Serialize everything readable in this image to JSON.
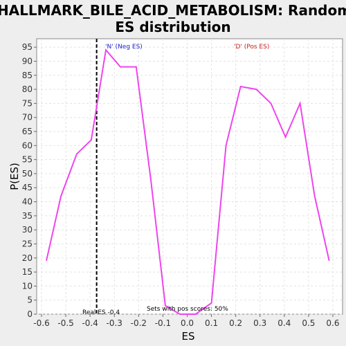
{
  "chart_data": {
    "type": "line",
    "title_line1": "HALLMARK_BILE_ACID_METABOLISM: Random",
    "title_line2": "ES distribution",
    "xlabel": "ES",
    "ylabel": "P(ES)",
    "xlim": [
      -0.62,
      0.64
    ],
    "ylim": [
      0,
      98
    ],
    "xticks": [
      -0.6,
      -0.5,
      -0.4,
      -0.3,
      -0.2,
      -0.1,
      0.0,
      0.1,
      0.2,
      0.3,
      0.4,
      0.5,
      0.6
    ],
    "xtick_labels": [
      "-0.6",
      "-0.5",
      "-0.4",
      "-0.3",
      "-0.2",
      "-0.1",
      "0.0",
      "0.1",
      "0.2",
      "0.3",
      "0.4",
      "0.5",
      "0.6"
    ],
    "yticks": [
      0,
      5,
      10,
      15,
      20,
      25,
      30,
      35,
      40,
      45,
      50,
      55,
      60,
      65,
      70,
      75,
      80,
      85,
      90,
      95
    ],
    "ytick_labels": [
      "0",
      "5",
      "10",
      "15",
      "20",
      "25",
      "30",
      "35",
      "40",
      "45",
      "50",
      "55",
      "60",
      "65",
      "70",
      "75",
      "80",
      "85",
      "90",
      "95"
    ],
    "grid": true,
    "series": [
      {
        "color": "#ee44ee",
        "x": [
          -0.58,
          -0.52,
          -0.455,
          -0.395,
          -0.335,
          -0.275,
          -0.21,
          -0.15,
          -0.09,
          -0.03,
          0.035,
          0.1,
          0.16,
          0.22,
          0.285,
          0.345,
          0.405,
          0.465,
          0.525,
          0.585
        ],
        "y": [
          19,
          42,
          57,
          62,
          94,
          88,
          88,
          48,
          3,
          0,
          0,
          4,
          60,
          81,
          80,
          75,
          63,
          75,
          42,
          19
        ]
      }
    ],
    "real_es": -0.373,
    "annotations": {
      "neg": {
        "text": "'N' (Neg ES)",
        "color": "#2222cc"
      },
      "pos": {
        "text": "'D' (Pos ES)",
        "color": "#cc2222"
      },
      "real_es": {
        "text": "Real ES -0.4"
      },
      "pos_scores": {
        "text": "Sets with pos scores: 50%"
      }
    }
  }
}
